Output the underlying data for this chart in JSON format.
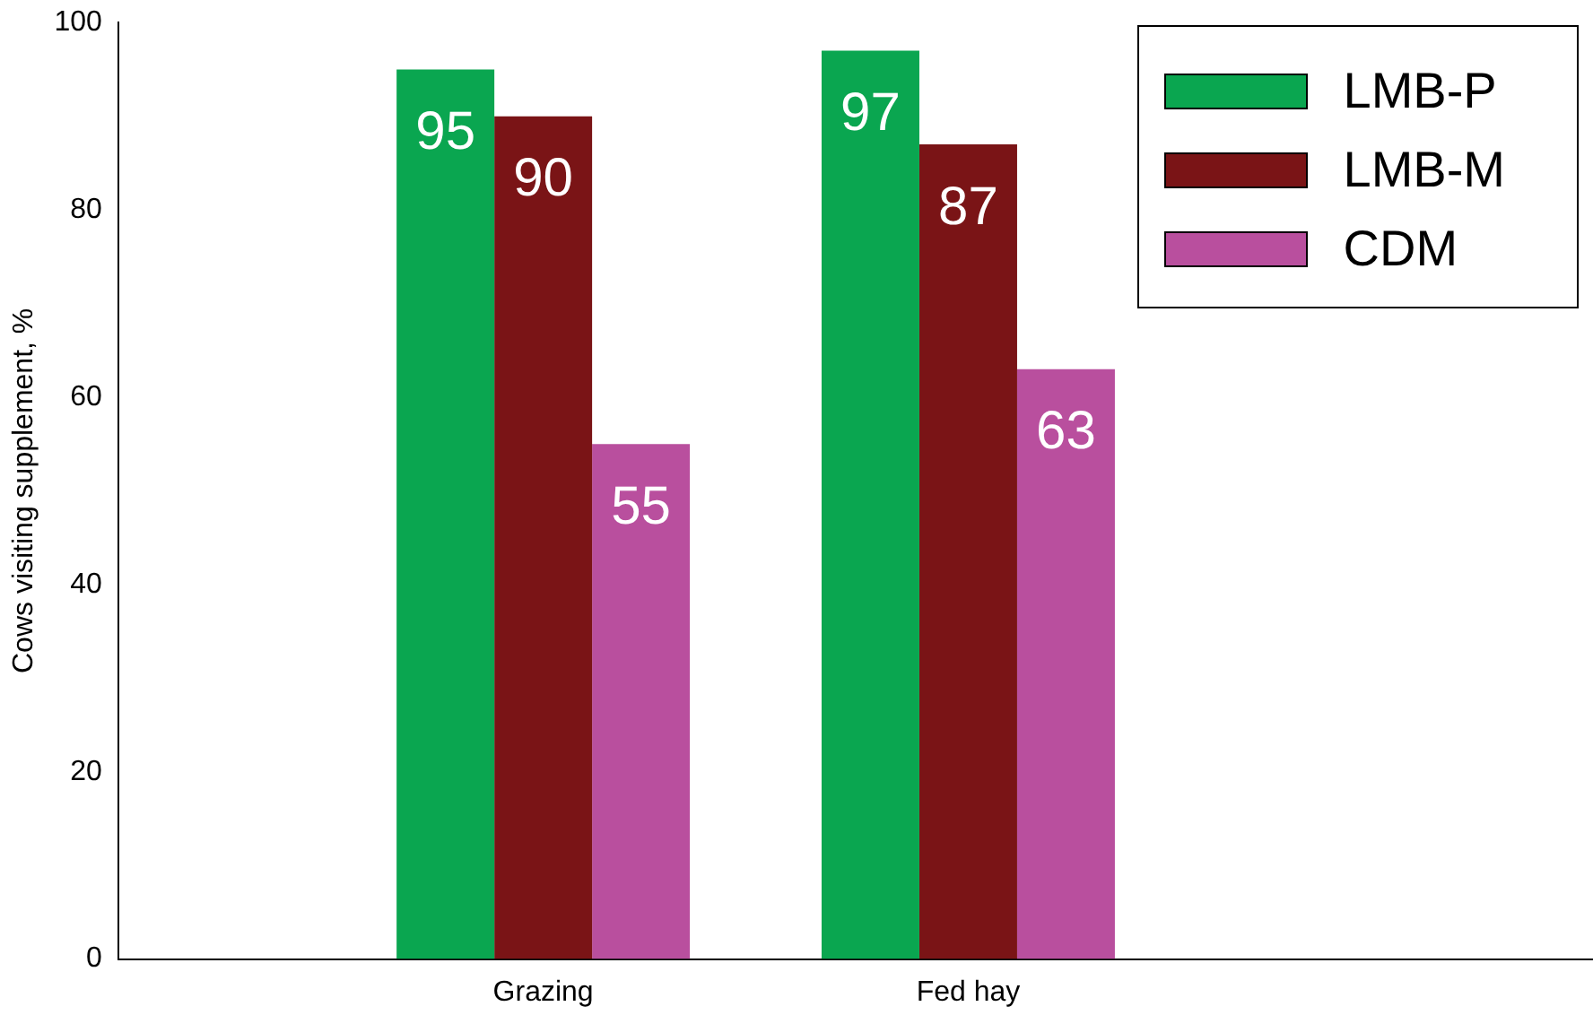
{
  "chart_data": {
    "type": "bar",
    "ylabel": "Cows visiting supplement, %",
    "categories": [
      "Grazing",
      "Fed hay"
    ],
    "series": [
      {
        "name": "LMB-P",
        "color": "#0aa650",
        "values": [
          95,
          97
        ]
      },
      {
        "name": "LMB-M",
        "color": "#7a1416",
        "values": [
          90,
          87
        ]
      },
      {
        "name": "CDM",
        "color": "#b94f9e",
        "values": [
          55,
          63
        ]
      }
    ],
    "ylim": [
      0,
      100
    ],
    "yticks": [
      0,
      20,
      40,
      60,
      80,
      100
    ],
    "grid": false,
    "legend": "top right",
    "data_labels": true
  }
}
